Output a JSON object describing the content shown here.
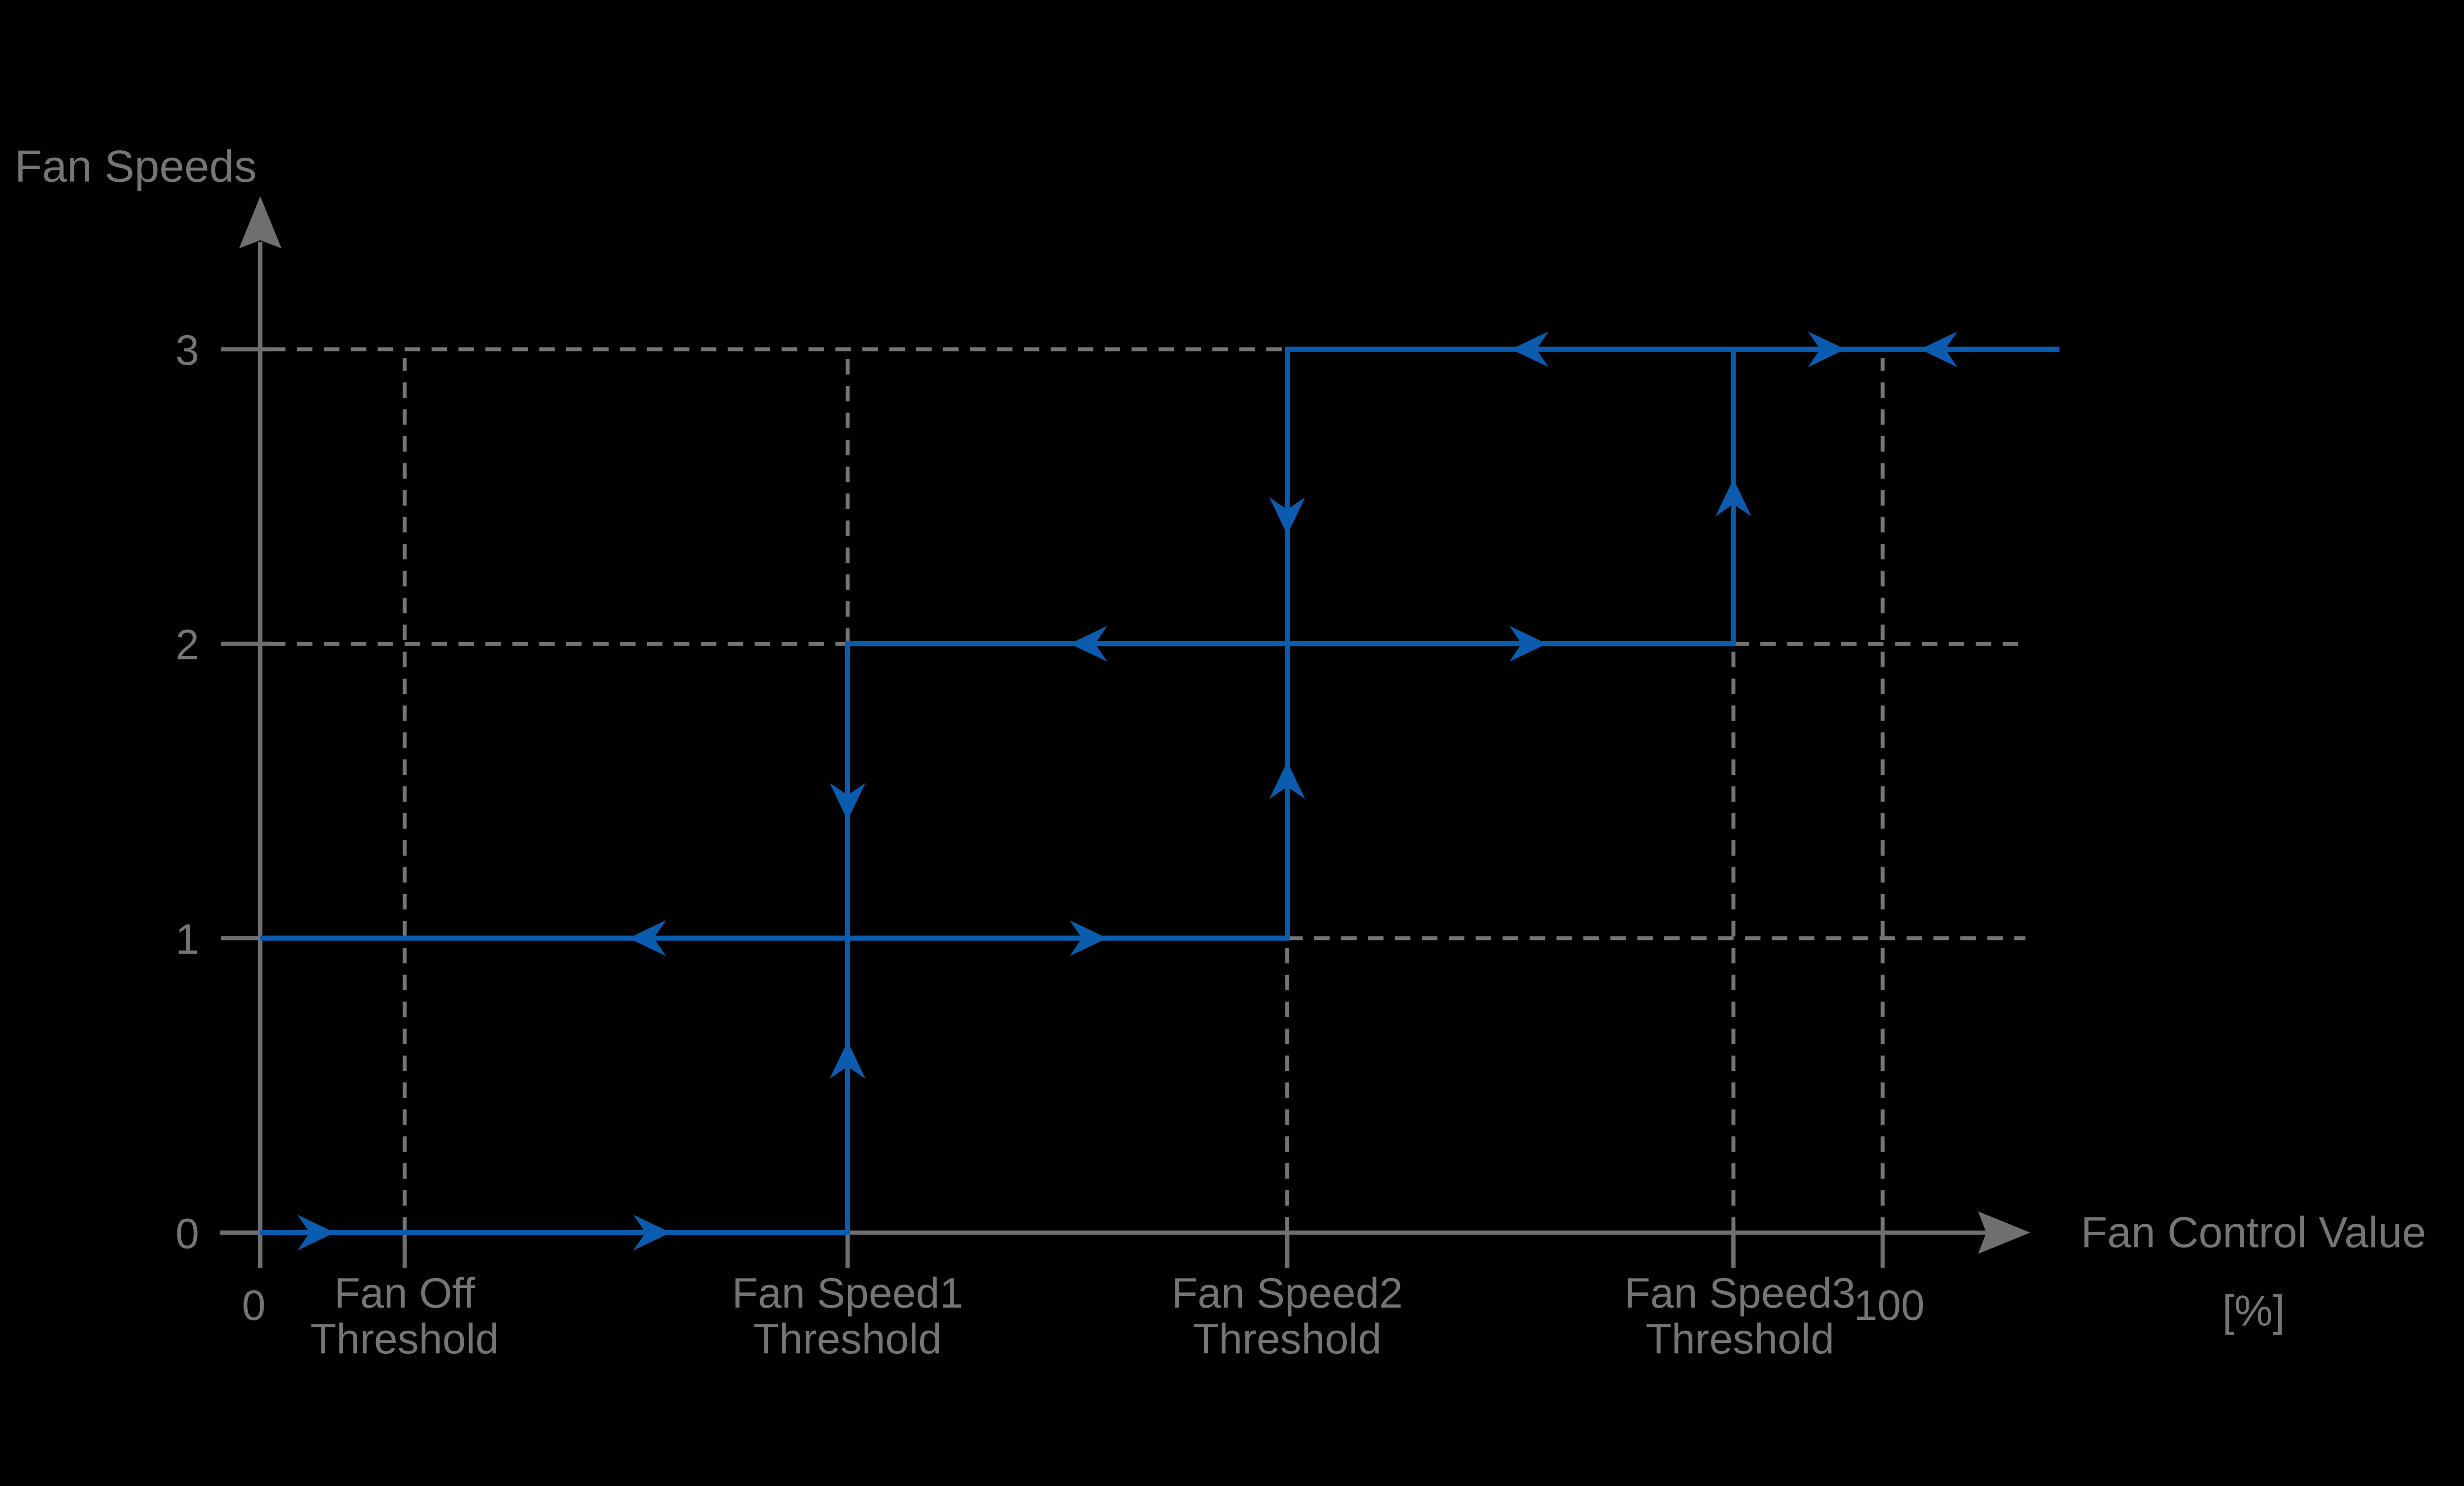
{
  "chart_data": {
    "type": "line",
    "subtype": "hysteresis-step-diagram",
    "ylabel": "Fan Speeds",
    "xlabel": "Fan Control Value [%]",
    "xlabel_lines": [
      "Fan Control Value",
      "[%]"
    ],
    "y_ticks": [
      {
        "label": "0",
        "value": 0
      },
      {
        "label": "1",
        "value": 1
      },
      {
        "label": "2",
        "value": 2
      },
      {
        "label": "3",
        "value": 3
      }
    ],
    "x_ticks": [
      {
        "label": "0",
        "lines": [
          "0"
        ],
        "pos": 0,
        "dx": -4
      },
      {
        "label": "Fan Off Threshold",
        "lines": [
          "Fan Off",
          "Threshold"
        ],
        "pos": 8.9,
        "dx": 0
      },
      {
        "label": "Fan Speed1 Threshold",
        "lines": [
          "Fan Speed1",
          "Threshold"
        ],
        "pos": 36.2,
        "dx": 0
      },
      {
        "label": "Fan Speed2 Threshold",
        "lines": [
          "Fan Speed2",
          "Threshold"
        ],
        "pos": 63.3,
        "dx": 0
      },
      {
        "label": "Fan Speed3 Threshold",
        "lines": [
          "Fan Speed3",
          "Threshold"
        ],
        "pos": 90.8,
        "dx": 4
      },
      {
        "label": "100",
        "lines": [
          "100"
        ],
        "pos": 100,
        "dx": 4
      }
    ],
    "xlim_pct": [
      -2.5,
      109.1
    ],
    "ylim": [
      -0.12,
      3.52
    ],
    "series": [
      {
        "name": "rising-path",
        "points": [
          [
            0,
            0
          ],
          [
            36.2,
            0
          ],
          [
            36.2,
            1
          ],
          [
            63.3,
            1
          ],
          [
            63.3,
            2
          ],
          [
            90.8,
            2
          ],
          [
            90.8,
            3
          ],
          [
            110.9,
            3
          ]
        ]
      },
      {
        "name": "falling-path",
        "points": [
          [
            110.9,
            3
          ],
          [
            63.3,
            3
          ],
          [
            63.3,
            2
          ],
          [
            36.2,
            2
          ],
          [
            36.2,
            1
          ],
          [
            0,
            1
          ]
        ]
      }
    ],
    "arrows": [
      {
        "x": 4.6,
        "y": 0,
        "dir": "right"
      },
      {
        "x": 25.3,
        "y": 0,
        "dir": "right"
      },
      {
        "x": 36.2,
        "y": 0.65,
        "dir": "up"
      },
      {
        "x": 52.2,
        "y": 1,
        "dir": "right"
      },
      {
        "x": 63.3,
        "y": 1.6,
        "dir": "up"
      },
      {
        "x": 79.3,
        "y": 2,
        "dir": "right"
      },
      {
        "x": 90.8,
        "y": 2.56,
        "dir": "up"
      },
      {
        "x": 97.7,
        "y": 3,
        "dir": "right"
      },
      {
        "x": 102.3,
        "y": 3,
        "dir": "left"
      },
      {
        "x": 77.1,
        "y": 3,
        "dir": "left"
      },
      {
        "x": 63.3,
        "y": 2.37,
        "dir": "down"
      },
      {
        "x": 49.9,
        "y": 2,
        "dir": "left"
      },
      {
        "x": 36.2,
        "y": 1.4,
        "dir": "down"
      },
      {
        "x": 22.7,
        "y": 1,
        "dir": "left"
      }
    ],
    "gridlines": {
      "horizontal": [
        {
          "y": 3,
          "from": 0.6,
          "to": 63.3
        },
        {
          "y": 2,
          "from": 0.6,
          "to": 36.2
        },
        {
          "y": 2,
          "from": 90.8,
          "to": 108.8
        },
        {
          "y": 1,
          "from": 63.3,
          "to": 108.8
        }
      ],
      "vertical": [
        {
          "x": 8.9,
          "from": 0,
          "to": 2.97
        },
        {
          "x": 36.2,
          "from": 2,
          "to": 2.97
        },
        {
          "x": 63.3,
          "from": 0,
          "to": 1
        },
        {
          "x": 90.8,
          "from": 0,
          "to": 2
        },
        {
          "x": 100,
          "from": 0,
          "to": 2.97
        }
      ]
    },
    "legend": "none",
    "colors": {
      "background": "#000000",
      "axis": "#6f6f6f",
      "grid": "#757575",
      "text": "#757575",
      "curve": "#0b5cae"
    }
  }
}
